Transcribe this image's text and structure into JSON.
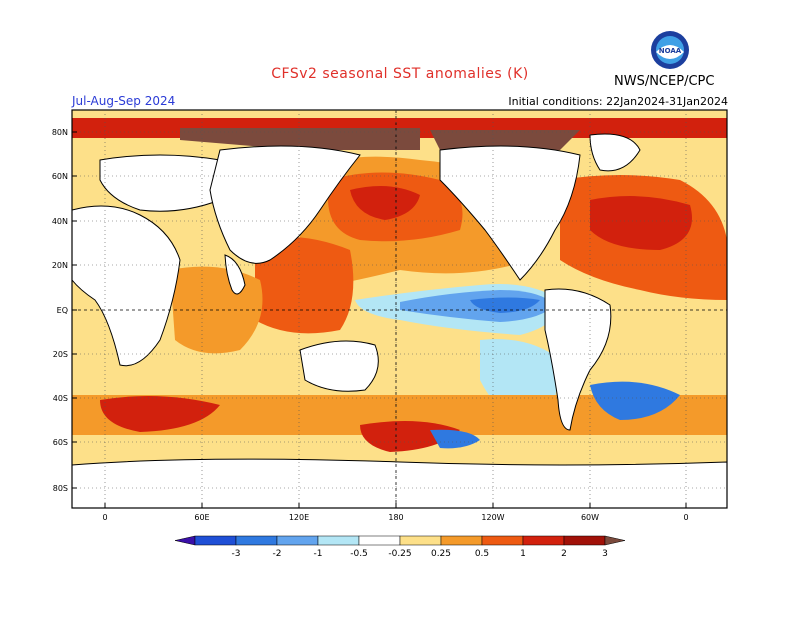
{
  "header": {
    "title": "CFSv2 seasonal SST anomalies (K)",
    "season": "Jul-Aug-Sep 2024",
    "initial_conditions": "Initial conditions: 22Jan2024-31Jan2024",
    "agency": "NWS/NCEP/CPC",
    "logo_text": "NOAA"
  },
  "axes": {
    "lat_labels": [
      "80N",
      "60N",
      "40N",
      "20N",
      "EQ",
      "20S",
      "40S",
      "60S",
      "80S"
    ],
    "lon_labels": [
      "0",
      "60E",
      "120E",
      "180",
      "120W",
      "60W",
      "0"
    ]
  },
  "colorbar": {
    "labels": [
      "-3",
      "-2",
      "-1",
      "-0.5",
      "-0.25",
      "0.25",
      "0.5",
      "1",
      "2",
      "3"
    ],
    "colors": [
      "#3a0fa8",
      "#1f4fd6",
      "#2f79e0",
      "#62a4ee",
      "#b3e6f5",
      "#ffffff",
      "#fde089",
      "#f49a2a",
      "#ee5a12",
      "#d2210d",
      "#a11108",
      "#7b4a3d"
    ]
  },
  "palette": {
    "land": "#ffffff",
    "coast": "#000000",
    "strong_warm": "#d2210d",
    "warm": "#ee5a12",
    "mild_warm": "#f49a2a",
    "slight_warm": "#fde089",
    "slight_cool": "#b3e6f5",
    "cool": "#62a4ee",
    "strong_cool": "#2f79e0",
    "extreme_warm": "#7b4a3d"
  }
}
